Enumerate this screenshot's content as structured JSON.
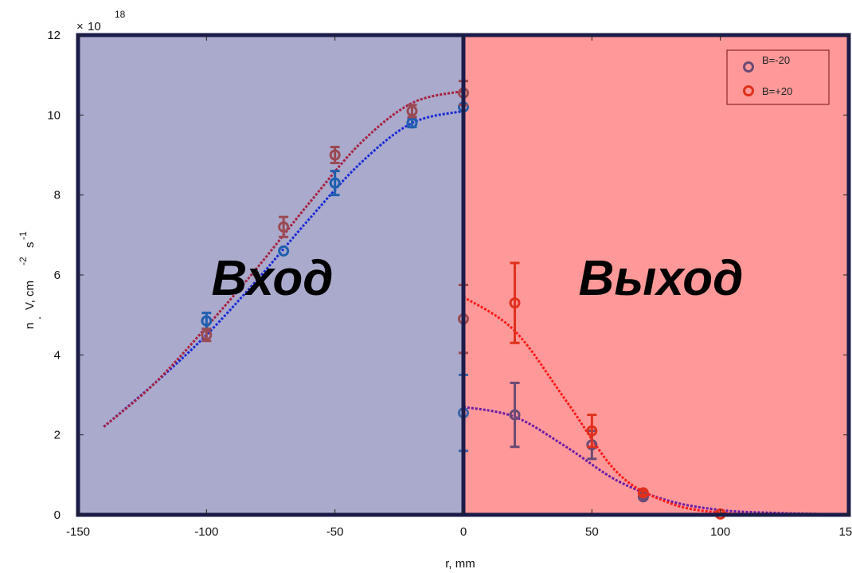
{
  "chart_data": {
    "type": "scatter",
    "title": "",
    "xlabel": "r, mm",
    "ylabel_parts": {
      "n": "n",
      "sub": ".",
      "main": "V, cm",
      "exp1": "-2",
      "s": "s",
      "exp2": "-1"
    },
    "exponent_label": {
      "times": "×",
      "base": "10",
      "exp": "18"
    },
    "xlim": [
      -150,
      150
    ],
    "ylim": [
      0,
      12
    ],
    "xticks": [
      -150,
      -100,
      -50,
      0,
      50,
      100,
      150
    ],
    "xtick_labels": [
      "-150",
      "-100",
      "-50",
      "0",
      "50",
      "100",
      "150"
    ],
    "yticks": [
      0,
      2,
      4,
      6,
      8,
      10,
      12
    ],
    "ytick_labels": [
      "0",
      "2",
      "4",
      "6",
      "8",
      "10",
      "12"
    ],
    "grid": false,
    "legend_position": "top-right",
    "regions": [
      {
        "label": "Вход",
        "range": [
          -150,
          0
        ],
        "color": "#aaaacc"
      },
      {
        "label": "Выход",
        "range": [
          0,
          150
        ],
        "color": "#ff9999"
      }
    ],
    "series": [
      {
        "name": "B=-20",
        "legend_color": "#6b4a74",
        "points": [
          {
            "x": -100,
            "y": 4.85,
            "err": 0.2,
            "color": "#2060b0"
          },
          {
            "x": -70,
            "y": 6.6,
            "err": 0.0,
            "color": "#2060b0"
          },
          {
            "x": -50,
            "y": 8.3,
            "err": 0.3,
            "color": "#2060b0"
          },
          {
            "x": -20,
            "y": 9.8,
            "err": 0.1,
            "color": "#2060b0"
          },
          {
            "x": 0,
            "y": 10.2,
            "err": 0.0,
            "color": "#2060b0"
          },
          {
            "x": 0,
            "y": 2.55,
            "err": 0.95,
            "color": "#3a63a8"
          },
          {
            "x": 20,
            "y": 2.5,
            "err": 0.8,
            "color": "#6b4a74"
          },
          {
            "x": 50,
            "y": 1.75,
            "err": 0.35,
            "color": "#6b4a74"
          },
          {
            "x": 70,
            "y": 0.45,
            "err": 0.05,
            "color": "#6b4a74"
          }
        ],
        "fit": {
          "x": [
            -140,
            -120,
            -100,
            -80,
            -60,
            -40,
            -20,
            0
          ],
          "y": [
            2.2,
            3.3,
            4.5,
            5.9,
            7.4,
            8.8,
            9.8,
            10.1
          ],
          "color": "#1a2ad8"
        },
        "fit2": {
          "x": [
            0,
            20,
            40,
            60,
            80,
            100,
            120,
            140
          ],
          "y": [
            2.7,
            2.45,
            1.7,
            0.85,
            0.35,
            0.12,
            0.05,
            0.02
          ],
          "color": "#6a1aa8"
        }
      },
      {
        "name": "B=+20",
        "legend_color": "#e0301c",
        "points": [
          {
            "x": -100,
            "y": 4.5,
            "err": 0.15,
            "color": "#9a4a52"
          },
          {
            "x": -70,
            "y": 7.2,
            "err": 0.25,
            "color": "#9a4a52"
          },
          {
            "x": -50,
            "y": 9.0,
            "err": 0.2,
            "color": "#9a4a52"
          },
          {
            "x": -20,
            "y": 10.1,
            "err": 0.15,
            "color": "#9a4a52"
          },
          {
            "x": 0,
            "y": 10.55,
            "err": 0.3,
            "color": "#9a4a52"
          },
          {
            "x": 0,
            "y": 4.9,
            "err": 0.85,
            "color": "#9a4a52"
          },
          {
            "x": 20,
            "y": 5.3,
            "err": 1.0,
            "color": "#e0301c"
          },
          {
            "x": 50,
            "y": 2.1,
            "err": 0.4,
            "color": "#e0301c"
          },
          {
            "x": 70,
            "y": 0.55,
            "err": 0.05,
            "color": "#e0301c"
          },
          {
            "x": 100,
            "y": 0.02,
            "err": 0.0,
            "color": "#e0301c"
          }
        ],
        "fit": {
          "x": [
            -140,
            -120,
            -100,
            -80,
            -60,
            -40,
            -20,
            0
          ],
          "y": [
            2.2,
            3.3,
            4.7,
            6.2,
            7.8,
            9.3,
            10.3,
            10.6
          ],
          "color": "#a82040"
        },
        "fit2": {
          "x": [
            0,
            20,
            40,
            60,
            80,
            100,
            120,
            140
          ],
          "y": [
            5.45,
            4.6,
            2.85,
            1.05,
            0.3,
            0.05,
            0.02,
            0.01
          ],
          "color": "#ff1a1a"
        }
      }
    ]
  }
}
